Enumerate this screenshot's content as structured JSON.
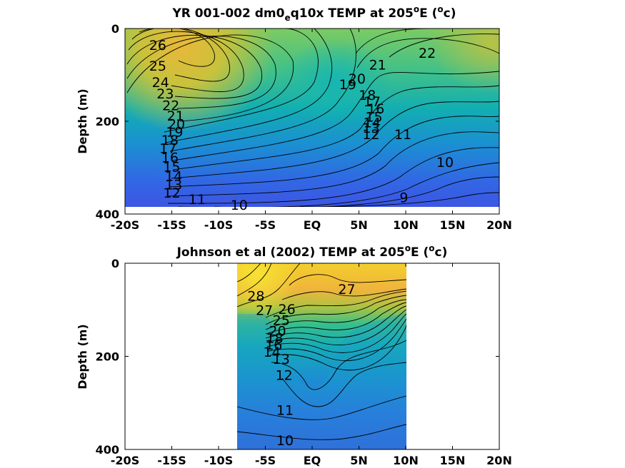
{
  "chart_data": [
    {
      "type": "contour",
      "title_parts": {
        "pre": "YR 001-002 dm0",
        "sub": "e",
        "mid": "q10x TEMP at 205",
        "sup": "o",
        "post": "E (",
        "sup2": "o",
        "end": "c)"
      },
      "ylabel": "Depth (m)",
      "xlim": [
        -20,
        20
      ],
      "ylim": [
        400,
        0
      ],
      "xticks": [
        {
          "v": -20,
          "label": "-20S"
        },
        {
          "v": -15,
          "label": "-15S"
        },
        {
          "v": -10,
          "label": "-10S"
        },
        {
          "v": -5,
          "label": "-5S"
        },
        {
          "v": 0,
          "label": "EQ"
        },
        {
          "v": 5,
          "label": "5N"
        },
        {
          "v": 10,
          "label": "10N"
        },
        {
          "v": 15,
          "label": "15N"
        },
        {
          "v": 20,
          "label": "20N"
        }
      ],
      "yticks": [
        0,
        200,
        400
      ],
      "data_extent": {
        "x": [
          -20,
          20
        ],
        "depth": [
          0,
          380
        ]
      },
      "contour_labels": [
        {
          "text": "26",
          "x": -16.5,
          "depth": 35
        },
        {
          "text": "25",
          "x": -16.5,
          "depth": 80
        },
        {
          "text": "24",
          "x": -16.2,
          "depth": 115
        },
        {
          "text": "23",
          "x": -15.7,
          "depth": 140
        },
        {
          "text": "22",
          "x": -15.1,
          "depth": 165
        },
        {
          "text": "21",
          "x": -14.6,
          "depth": 188
        },
        {
          "text": "20",
          "x": -14.5,
          "depth": 205
        },
        {
          "text": "19",
          "x": -14.7,
          "depth": 222
        },
        {
          "text": "18",
          "x": -15.2,
          "depth": 240
        },
        {
          "text": "17",
          "x": -15.4,
          "depth": 258
        },
        {
          "text": "16",
          "x": -15.2,
          "depth": 278
        },
        {
          "text": "15",
          "x": -15.0,
          "depth": 298
        },
        {
          "text": "14",
          "x": -14.8,
          "depth": 318
        },
        {
          "text": "13",
          "x": -14.8,
          "depth": 336
        },
        {
          "text": "12",
          "x": -15.0,
          "depth": 354
        },
        {
          "text": "11",
          "x": -12.3,
          "depth": 368
        },
        {
          "text": "10",
          "x": -7.8,
          "depth": 380
        },
        {
          "text": "20",
          "x": 4.8,
          "depth": 108
        },
        {
          "text": "19",
          "x": 3.8,
          "depth": 120
        },
        {
          "text": "18",
          "x": 5.9,
          "depth": 143
        },
        {
          "text": "17",
          "x": 6.4,
          "depth": 157
        },
        {
          "text": "16",
          "x": 6.8,
          "depth": 172
        },
        {
          "text": "15",
          "x": 6.6,
          "depth": 190
        },
        {
          "text": "14",
          "x": 6.4,
          "depth": 202
        },
        {
          "text": "13",
          "x": 6.3,
          "depth": 214
        },
        {
          "text": "12",
          "x": 6.3,
          "depth": 228
        },
        {
          "text": "11",
          "x": 9.7,
          "depth": 228
        },
        {
          "text": "10",
          "x": 14.2,
          "depth": 288
        },
        {
          "text": "9",
          "x": 9.8,
          "depth": 364
        },
        {
          "text": "21",
          "x": 7.0,
          "depth": 78
        },
        {
          "text": "22",
          "x": 12.3,
          "depth": 52
        }
      ]
    },
    {
      "type": "contour",
      "title_parts": {
        "pre": "Johnson et al (2002) TEMP at 205",
        "sup": "o",
        "post": "E (",
        "sup2": "o",
        "end": "c)"
      },
      "ylabel": "Depth (m)",
      "xlim": [
        -20,
        20
      ],
      "ylim": [
        400,
        0
      ],
      "xticks": [
        {
          "v": -20,
          "label": "-20S"
        },
        {
          "v": -15,
          "label": "-15S"
        },
        {
          "v": -10,
          "label": "-10S"
        },
        {
          "v": -5,
          "label": "-5S"
        },
        {
          "v": 0,
          "label": "EQ"
        },
        {
          "v": 5,
          "label": "5N"
        },
        {
          "v": 10,
          "label": "10N"
        },
        {
          "v": 15,
          "label": "15N"
        },
        {
          "v": 20,
          "label": "20N"
        }
      ],
      "yticks": [
        0,
        200,
        400
      ],
      "data_extent": {
        "x": [
          -8,
          10
        ],
        "depth": [
          0,
          400
        ]
      },
      "contour_labels": [
        {
          "text": "28",
          "x": -6.0,
          "depth": 70
        },
        {
          "text": "27",
          "x": -5.1,
          "depth": 100
        },
        {
          "text": "26",
          "x": -2.7,
          "depth": 98
        },
        {
          "text": "27",
          "x": 3.7,
          "depth": 55
        },
        {
          "text": "25",
          "x": -3.3,
          "depth": 122
        },
        {
          "text": "20",
          "x": -3.7,
          "depth": 145
        },
        {
          "text": "18",
          "x": -4.0,
          "depth": 160
        },
        {
          "text": "16",
          "x": -4.1,
          "depth": 175
        },
        {
          "text": "14",
          "x": -4.3,
          "depth": 190
        },
        {
          "text": "13",
          "x": -3.3,
          "depth": 205
        },
        {
          "text": "12",
          "x": -3.0,
          "depth": 240
        },
        {
          "text": "11",
          "x": -2.9,
          "depth": 315
        },
        {
          "text": "10",
          "x": -2.9,
          "depth": 380
        }
      ]
    }
  ]
}
